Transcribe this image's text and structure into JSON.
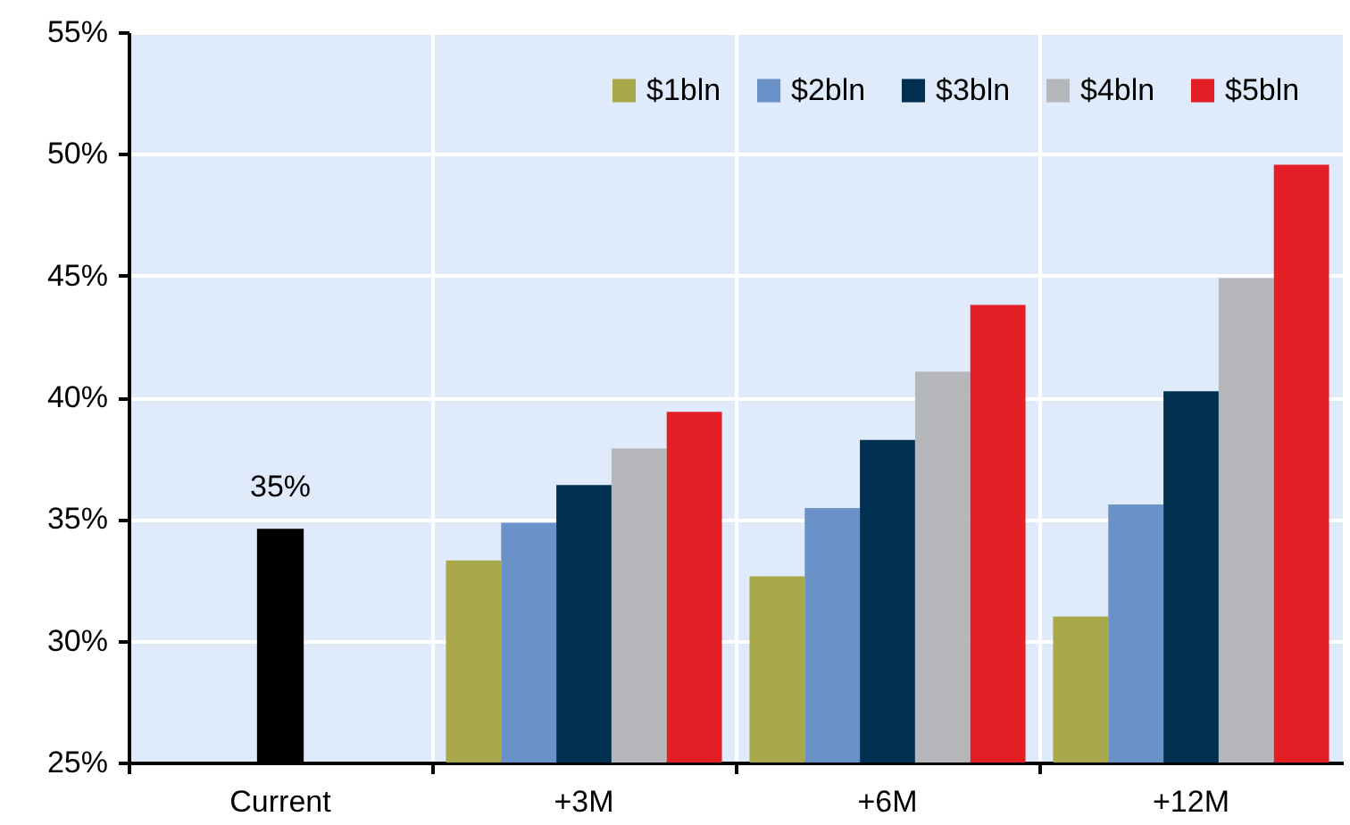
{
  "chart_data": {
    "type": "bar",
    "categories": [
      "Current",
      "+3M",
      "+6M",
      "+12M"
    ],
    "series": [
      {
        "color": "#000000",
        "values": [
          34.6,
          null,
          null,
          null
        ],
        "value_labels": [
          "35%",
          null,
          null,
          null
        ]
      },
      {
        "name": "$1bln",
        "color": "#a8a84a",
        "values": [
          null,
          33.3,
          32.65,
          31.0
        ]
      },
      {
        "name": "$2bln",
        "color": "#6b92c8",
        "values": [
          null,
          34.85,
          35.45,
          35.6
        ]
      },
      {
        "name": "$3bln",
        "color": "#00304f",
        "values": [
          null,
          36.4,
          38.25,
          40.25
        ]
      },
      {
        "name": "$4bln",
        "color": "#b6b7ba",
        "values": [
          null,
          37.9,
          41.05,
          44.9
        ]
      },
      {
        "name": "$5bln",
        "color": "#e31e25",
        "values": [
          null,
          39.4,
          43.8,
          49.55
        ]
      }
    ],
    "ylim": [
      25,
      55
    ],
    "yticks": [
      {
        "value": 25,
        "label": "25%"
      },
      {
        "value": 30,
        "label": "30%"
      },
      {
        "value": 35,
        "label": "35%"
      },
      {
        "value": 40,
        "label": "40%"
      },
      {
        "value": 45,
        "label": "45%"
      },
      {
        "value": 50,
        "label": "50%"
      },
      {
        "value": 55,
        "label": "55%"
      }
    ],
    "grid": true,
    "legend": "top right"
  }
}
